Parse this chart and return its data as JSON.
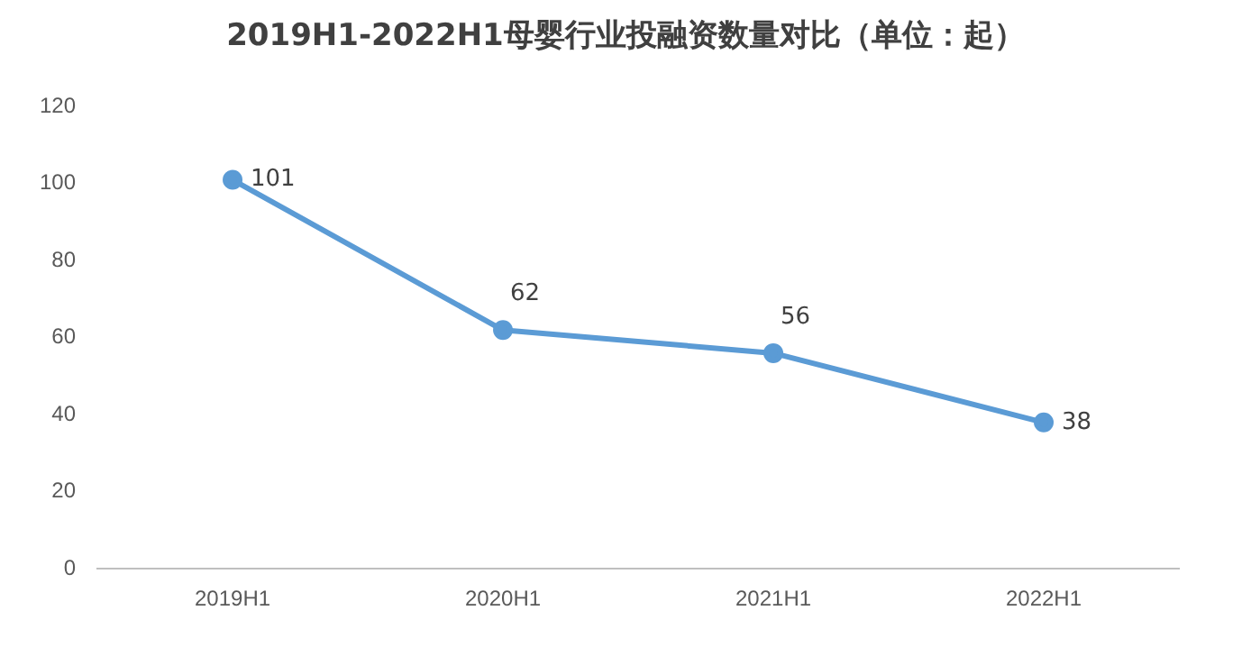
{
  "chart_data": {
    "type": "line",
    "title": "2019H1-2022H1母婴行业投融资数量对比（单位：起）",
    "categories": [
      "2019H1",
      "2020H1",
      "2021H1",
      "2022H1"
    ],
    "series": [
      {
        "color": "#5b9bd5",
        "values": [
          101,
          62,
          56,
          38
        ]
      }
    ],
    "ylim": [
      0,
      120
    ],
    "yticks": [
      0,
      20,
      40,
      60,
      80,
      100,
      120
    ],
    "grid": false,
    "legend": false,
    "marker": "circle",
    "line_style": "solid",
    "data_labels": true
  }
}
